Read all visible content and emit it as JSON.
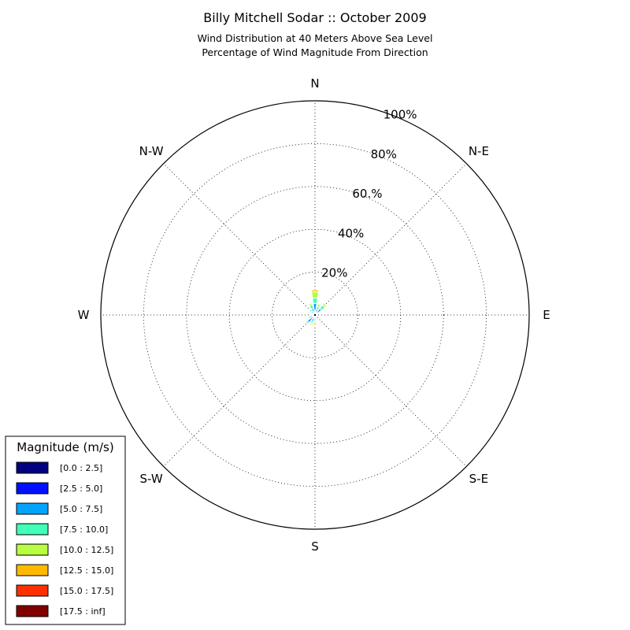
{
  "chart_data": {
    "type": "windrose",
    "title": "Billy Mitchell Sodar :: October 2009",
    "subtitle_lines": [
      "Wind Distribution at 40 Meters Above Sea Level",
      "Percentage of Wind Magnitude From Direction"
    ],
    "directions": [
      "N",
      "N-E",
      "E",
      "S-E",
      "S",
      "S-W",
      "W",
      "N-W"
    ],
    "ring_labels": [
      "20%",
      "40%",
      "60.%",
      "80%",
      "100%"
    ],
    "rmax": 100,
    "grid": true,
    "legend": {
      "title": "Magnitude (m/s)",
      "placement": "bottom-left",
      "bins": [
        {
          "label": "[0.0 : 2.5]",
          "color": "#000080"
        },
        {
          "label": "[2.5 : 5.0]",
          "color": "#0010ff"
        },
        {
          "label": "[5.0 : 7.5]",
          "color": "#00a4ff"
        },
        {
          "label": "[7.5 : 10.0]",
          "color": "#40ffb7"
        },
        {
          "label": "[10.0 : 12.5]",
          "color": "#b7ff40"
        },
        {
          "label": "[12.5 : 15.0]",
          "color": "#ffb900"
        },
        {
          "label": "[15.0 : 17.5]",
          "color": "#ff3000"
        },
        {
          "label": "[17.5 : inf]",
          "color": "#800000"
        }
      ]
    },
    "sector_angles_deg": [
      0,
      22.5,
      45,
      67.5,
      90,
      112.5,
      135,
      157.5,
      180,
      202.5,
      225,
      247.5,
      270,
      292.5,
      315,
      337.5
    ],
    "series": [
      {
        "name": "[0.0 : 2.5]",
        "values": [
          0.4,
          0.3,
          0.3,
          0.2,
          0.2,
          0.2,
          0.2,
          0.3,
          0.4,
          0.4,
          0.4,
          0.3,
          0.3,
          0.3,
          0.3,
          0.4
        ]
      },
      {
        "name": "[2.5 : 5.0]",
        "values": [
          1.5,
          0.8,
          0.9,
          0.4,
          0.3,
          0.2,
          0.2,
          0.3,
          0.8,
          1.2,
          1.6,
          1.0,
          0.5,
          0.4,
          0.6,
          0.8
        ]
      },
      {
        "name": "[5.0 : 7.5]",
        "values": [
          3.5,
          1.8,
          2.6,
          0.3,
          0.0,
          0.0,
          0.0,
          0.3,
          1.2,
          1.6,
          2.4,
          1.4,
          0.6,
          0.6,
          1.4,
          2.0
        ]
      },
      {
        "name": "[7.5 : 10.0]",
        "values": [
          2.5,
          1.2,
          2.0,
          0.0,
          0.0,
          0.0,
          0.0,
          0.0,
          0.8,
          0.9,
          0.9,
          0.6,
          0.3,
          0.4,
          1.2,
          1.8
        ]
      },
      {
        "name": "[10.0 : 12.5]",
        "values": [
          3.0,
          1.2,
          1.0,
          0.0,
          0.0,
          0.0,
          0.0,
          0.0,
          0.6,
          0.5,
          0.2,
          0.2,
          0.0,
          0.0,
          0.3,
          0.8
        ]
      },
      {
        "name": "[12.5 : 15.0]",
        "values": [
          0.8,
          0.2,
          0.0,
          0.0,
          0.0,
          0.0,
          0.0,
          0.0,
          0.8,
          0.5,
          0.2,
          0.0,
          0.0,
          0.0,
          0.0,
          0.0
        ]
      },
      {
        "name": "[15.0 : 17.5]",
        "values": [
          0.0,
          0.0,
          0.0,
          0.0,
          0.0,
          0.0,
          0.0,
          0.0,
          0.3,
          0.0,
          0.0,
          0.0,
          0.0,
          0.0,
          0.0,
          0.0
        ]
      },
      {
        "name": "[17.5 : inf]",
        "values": [
          0.0,
          0.0,
          0.0,
          0.0,
          0.0,
          0.0,
          0.0,
          0.0,
          0.0,
          0.0,
          0.0,
          0.0,
          0.0,
          0.0,
          0.0,
          0.0
        ]
      }
    ]
  }
}
